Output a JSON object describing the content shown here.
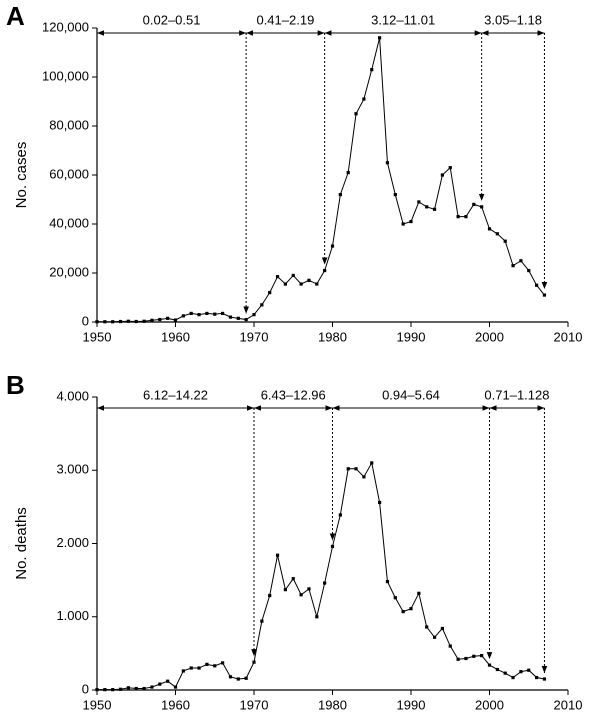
{
  "chart_data": [
    {
      "type": "line",
      "panel_label": "A",
      "y_label": "No. cases",
      "color": "#000000",
      "x": [
        1950,
        1951,
        1952,
        1953,
        1954,
        1955,
        1956,
        1957,
        1958,
        1959,
        1960,
        1961,
        1962,
        1963,
        1964,
        1965,
        1966,
        1967,
        1968,
        1969,
        1970,
        1971,
        1972,
        1973,
        1974,
        1975,
        1976,
        1977,
        1978,
        1979,
        1980,
        1981,
        1982,
        1983,
        1984,
        1985,
        1986,
        1987,
        1988,
        1989,
        1990,
        1991,
        1992,
        1993,
        1994,
        1995,
        1996,
        1997,
        1998,
        1999,
        2000,
        2001,
        2002,
        2003,
        2004,
        2005,
        2006,
        2007
      ],
      "values": [
        100,
        100,
        100,
        200,
        300,
        200,
        300,
        700,
        1000,
        1500,
        800,
        2500,
        3500,
        3000,
        3500,
        3200,
        3500,
        2000,
        1500,
        1000,
        3000,
        7000,
        12000,
        18500,
        15500,
        19000,
        15500,
        17000,
        15500,
        21000,
        31000,
        52000,
        61000,
        85000,
        91000,
        103000,
        116000,
        65000,
        52000,
        40000,
        41000,
        49000,
        47000,
        46000,
        60000,
        63000,
        43000,
        43000,
        48000,
        47000,
        38000,
        36000,
        33000,
        23000,
        25000,
        21000,
        15000,
        11000
      ],
      "xlim": [
        1950,
        2010
      ],
      "xticks": [
        1950,
        1960,
        1970,
        1980,
        1990,
        2000,
        2010
      ],
      "ylim": [
        0,
        120000
      ],
      "yticks": [
        0,
        {
          "value": 20000,
          "label": "20,000"
        },
        {
          "value": 40000,
          "label": "40,000"
        },
        {
          "value": 60000,
          "label": "60,000"
        },
        {
          "value": 80000,
          "label": "80,000"
        },
        {
          "value": 100000,
          "label": "100,000"
        },
        {
          "value": 120000,
          "label": "120,000"
        }
      ],
      "annotations": [
        {
          "label": "0.02–0.51",
          "start": 1950,
          "end": 1969
        },
        {
          "label": "0.41–2.19",
          "start": 1969,
          "end": 1979
        },
        {
          "label": "3.12–11.01",
          "start": 1979,
          "end": 1999
        },
        {
          "label": "3.05–1.18",
          "start": 1999,
          "end": 2007
        }
      ]
    },
    {
      "type": "line",
      "panel_label": "B",
      "y_label": "No. deaths",
      "color": "#000000",
      "x": [
        1950,
        1951,
        1952,
        1953,
        1954,
        1955,
        1956,
        1957,
        1958,
        1959,
        1960,
        1961,
        1962,
        1963,
        1964,
        1965,
        1966,
        1967,
        1968,
        1969,
        1970,
        1971,
        1972,
        1973,
        1974,
        1975,
        1976,
        1977,
        1978,
        1979,
        1980,
        1981,
        1982,
        1983,
        1984,
        1985,
        1986,
        1987,
        1988,
        1989,
        1990,
        1991,
        1992,
        1993,
        1994,
        1995,
        1996,
        1997,
        1998,
        1999,
        2000,
        2001,
        2002,
        2003,
        2004,
        2005,
        2006,
        2007
      ],
      "values": [
        5,
        5,
        5,
        10,
        30,
        20,
        20,
        40,
        80,
        120,
        40,
        260,
        300,
        300,
        350,
        330,
        370,
        180,
        150,
        160,
        380,
        940,
        1290,
        1840,
        1370,
        1520,
        1300,
        1380,
        1000,
        1460,
        1960,
        2390,
        3020,
        3020,
        2910,
        3100,
        2560,
        1480,
        1260,
        1070,
        1110,
        1320,
        860,
        720,
        840,
        600,
        420,
        430,
        460,
        470,
        340,
        280,
        230,
        170,
        250,
        270,
        170,
        150
      ],
      "xlim": [
        1950,
        2010
      ],
      "xticks": [
        1950,
        1960,
        1970,
        1980,
        1990,
        2000,
        2010
      ],
      "ylim": [
        0,
        4000
      ],
      "yticks": [
        0,
        {
          "value": 1000,
          "label": "1.000"
        },
        {
          "value": 2000,
          "label": "2.000"
        },
        {
          "value": 3000,
          "label": "3.000"
        },
        {
          "value": 4000,
          "label": "4.000"
        }
      ],
      "annotations": [
        {
          "label": "6.12–14.22",
          "start": 1950,
          "end": 1970
        },
        {
          "label": "6.43–12.96",
          "start": 1970,
          "end": 1980
        },
        {
          "label": "0.94–5.64",
          "start": 1980,
          "end": 2000
        },
        {
          "label": "0.71–1.128",
          "start": 2000,
          "end": 2007
        }
      ]
    }
  ]
}
